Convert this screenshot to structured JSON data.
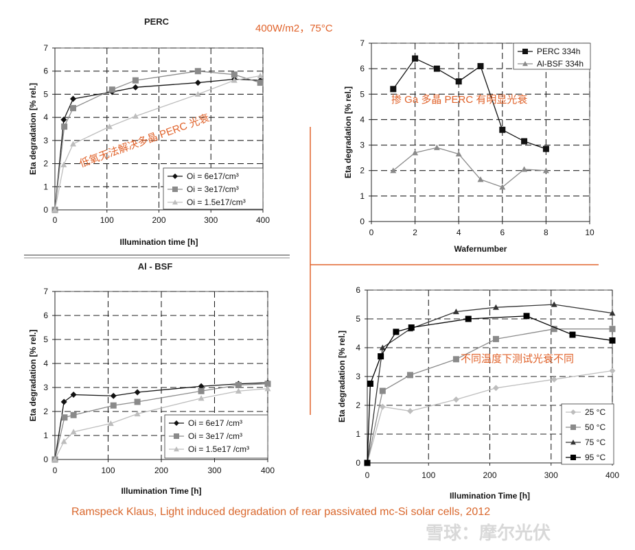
{
  "header": {
    "condition": "400W/m2，75°C"
  },
  "source": {
    "citation": "Ramspeck Klaus, Light induced degradation of rear passivated mc-Si solar cells, 2012"
  },
  "watermark": {
    "text": "雪球：摩尔光伏"
  },
  "colors": {
    "annotation": "#e0622a",
    "divider": "#e0622a",
    "series_dark": "#111111",
    "series_mid": "#8a8a8a",
    "series_light": "#bdbdbd"
  },
  "chart_data": [
    {
      "type": "line",
      "title": "PERC",
      "xlabel": "Illumination time [h]",
      "ylabel": "Eta degradation [% rel.]",
      "xlim": [
        0,
        400
      ],
      "ylim": [
        0,
        7
      ],
      "xticks": [
        0,
        100,
        200,
        300,
        400
      ],
      "yticks": [
        0,
        1,
        2,
        3,
        4,
        5,
        6,
        7
      ],
      "grid": true,
      "legend": "bottom-right",
      "annotation": "低氧无法解决多晶 PERC 光衰",
      "series": [
        {
          "name": "Oi = 6e17/cm³",
          "marker": "diamond",
          "color": "#111111",
          "x": [
            0,
            17,
            35,
            110,
            155,
            275,
            345,
            395
          ],
          "y": [
            0,
            3.9,
            4.8,
            5.1,
            5.3,
            5.5,
            5.65,
            5.6
          ]
        },
        {
          "name": "Oi = 3e17/cm³",
          "marker": "square",
          "color": "#8a8a8a",
          "x": [
            0,
            18,
            35,
            110,
            155,
            275,
            345,
            395
          ],
          "y": [
            0,
            3.6,
            4.4,
            5.2,
            5.6,
            6.0,
            5.85,
            5.5
          ]
        },
        {
          "name": "Oi = 1.5e17/cm³",
          "marker": "triangle",
          "color": "#bdbdbd",
          "x": [
            0,
            17,
            35,
            105,
            155,
            275,
            345,
            395
          ],
          "y": [
            0,
            1.95,
            2.85,
            3.6,
            4.05,
            5.0,
            5.6,
            5.8
          ]
        }
      ]
    },
    {
      "type": "line",
      "title": "",
      "xlabel": "Wafernumber",
      "ylabel": "Eta degradation [% rel.]",
      "xlim": [
        0,
        10
      ],
      "ylim": [
        0,
        7
      ],
      "xticks": [
        0,
        2,
        4,
        6,
        8,
        10
      ],
      "yticks": [
        0,
        1,
        2,
        3,
        4,
        5,
        6,
        7
      ],
      "grid": true,
      "legend": "top-right",
      "annotation": "掺 Ga 多晶 PERC 有明显光衰",
      "series": [
        {
          "name": "PERC 334h",
          "marker": "square",
          "color": "#111111",
          "x": [
            1,
            2,
            3,
            4,
            5,
            6,
            7,
            8
          ],
          "y": [
            5.2,
            6.4,
            6.0,
            5.5,
            6.1,
            3.6,
            3.15,
            2.85
          ]
        },
        {
          "name": "Al-BSF 334h",
          "marker": "triangle",
          "color": "#8a8a8a",
          "x": [
            1,
            2,
            3,
            4,
            5,
            6,
            7,
            8
          ],
          "y": [
            2.0,
            2.7,
            2.9,
            2.65,
            1.65,
            1.35,
            2.05,
            2.0
          ]
        }
      ]
    },
    {
      "type": "line",
      "title": "Al - BSF",
      "xlabel": "Illumination Time [h]",
      "ylabel": "Eta degradation [% rel.]",
      "xlim": [
        0,
        400
      ],
      "ylim": [
        0,
        7
      ],
      "xticks": [
        0,
        100,
        200,
        300,
        400
      ],
      "yticks": [
        0,
        1,
        2,
        3,
        4,
        5,
        6,
        7
      ],
      "grid": true,
      "legend": "bottom-left",
      "annotation": "",
      "series": [
        {
          "name": "Oi = 6e17 /cm³",
          "marker": "diamond",
          "color": "#111111",
          "x": [
            0,
            17,
            35,
            110,
            155,
            275,
            345,
            400
          ],
          "y": [
            0,
            2.4,
            2.7,
            2.65,
            2.8,
            3.05,
            3.15,
            3.2
          ]
        },
        {
          "name": "Oi = 3e17 /cm³",
          "marker": "square",
          "color": "#8a8a8a",
          "x": [
            0,
            18,
            35,
            110,
            155,
            275,
            345,
            400
          ],
          "y": [
            0,
            1.75,
            1.85,
            2.25,
            2.4,
            2.85,
            3.1,
            3.15
          ]
        },
        {
          "name": "Oi = 1.5e17 /cm³",
          "marker": "triangle",
          "color": "#bdbdbd",
          "x": [
            0,
            17,
            35,
            105,
            155,
            275,
            345,
            400
          ],
          "y": [
            0,
            0.75,
            1.15,
            1.5,
            1.9,
            2.55,
            2.85,
            2.95
          ]
        }
      ]
    },
    {
      "type": "line",
      "title": "",
      "xlabel": "Illumination Time [h]",
      "ylabel": "Eta degradation [% rel.]",
      "xlim": [
        0,
        400
      ],
      "ylim": [
        0,
        6
      ],
      "xticks": [
        0,
        100,
        200,
        300,
        400
      ],
      "yticks": [
        0,
        1,
        2,
        3,
        4,
        5,
        6
      ],
      "grid": true,
      "legend": "bottom-right",
      "annotation": "不同温度下测试光衰不同",
      "series": [
        {
          "name": "25 °C",
          "marker": "diamond",
          "color": "#bdbdbd",
          "x": [
            0,
            25,
            70,
            145,
            210,
            305,
            400
          ],
          "y": [
            0,
            1.95,
            1.8,
            2.2,
            2.6,
            2.9,
            3.2
          ]
        },
        {
          "name": "50 °C",
          "marker": "square",
          "color": "#8a8a8a",
          "x": [
            0,
            25,
            70,
            145,
            210,
            305,
            400
          ],
          "y": [
            0,
            2.5,
            3.05,
            3.6,
            4.3,
            4.65,
            4.65
          ]
        },
        {
          "name": "75 °C",
          "marker": "triangle",
          "color": "#333333",
          "x": [
            0,
            25,
            70,
            145,
            210,
            305,
            400
          ],
          "y": [
            0,
            4.0,
            4.65,
            5.25,
            5.4,
            5.5,
            5.2
          ]
        },
        {
          "name": "95 °C",
          "marker": "square",
          "color": "#000000",
          "x": [
            0,
            5,
            22,
            47,
            72,
            165,
            260,
            335,
            400
          ],
          "y": [
            0,
            2.75,
            3.7,
            4.55,
            4.7,
            5.0,
            5.1,
            4.45,
            4.25
          ]
        }
      ]
    }
  ]
}
